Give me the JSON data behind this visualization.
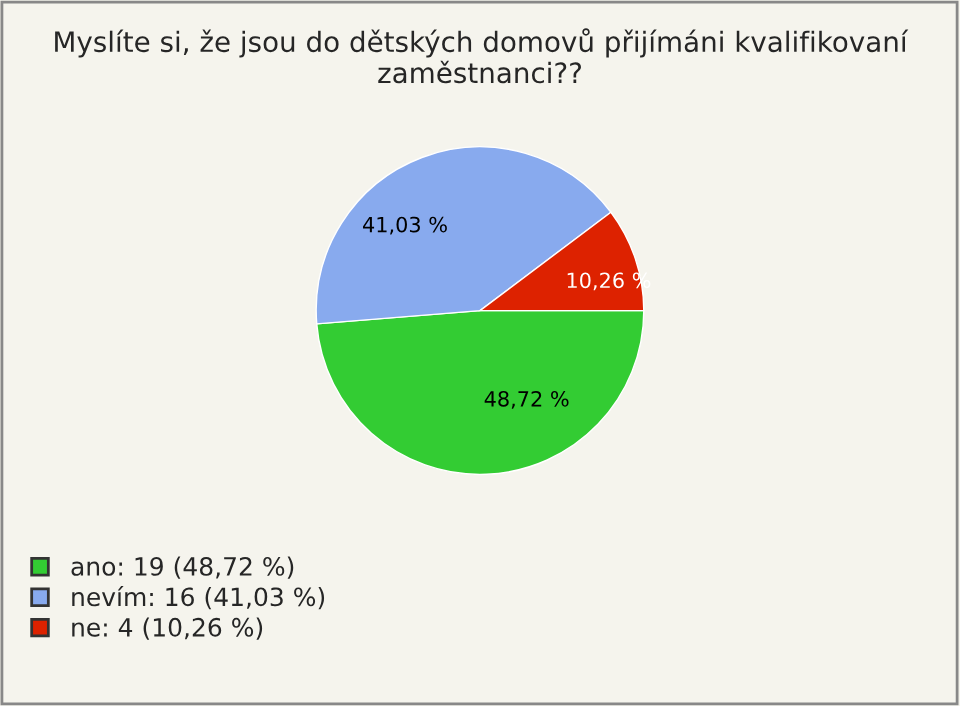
{
  "chart_data": {
    "type": "pie",
    "title": "Myslíte si, že jsou do dětských domovů přijímáni kvalifikovaní zaměstnanci??",
    "categories": [
      "ano: 19 (48,72 %)",
      "nevím: 16 (41,03 %)",
      "ne: 4 (10,26 %)"
    ],
    "values": [
      48.72,
      41.03,
      10.26
    ],
    "value_labels": [
      "48,72 %",
      "41,03 %",
      "10,26 %"
    ],
    "colors": [
      "#33cc33",
      "#88aaee",
      "#dd2200"
    ],
    "legend": "bottom left"
  }
}
